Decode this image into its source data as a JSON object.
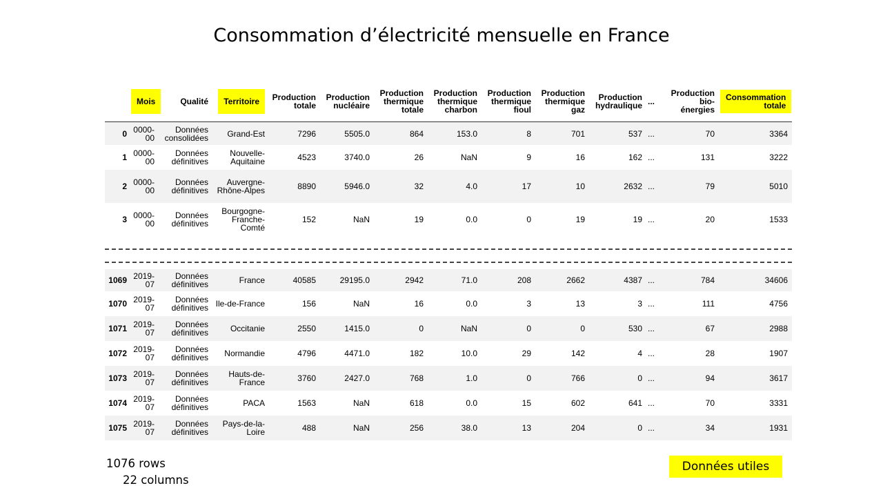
{
  "title": "Consommation d’électricité mensuelle en France",
  "table": {
    "columns": [
      {
        "label": "",
        "highlight": false
      },
      {
        "label": "Mois",
        "highlight": true
      },
      {
        "label": "Qualité",
        "highlight": false
      },
      {
        "label": "Territoire",
        "highlight": true
      },
      {
        "label": "Production totale",
        "highlight": false
      },
      {
        "label": "Production nucléaire",
        "highlight": false
      },
      {
        "label": "Production thermique totale",
        "highlight": false
      },
      {
        "label": "Production thermique charbon",
        "highlight": false
      },
      {
        "label": "Production thermique fioul",
        "highlight": false
      },
      {
        "label": "Production thermique gaz",
        "highlight": false
      },
      {
        "label": "Production hydraulique",
        "highlight": false
      },
      {
        "label": "...",
        "highlight": false
      },
      {
        "label": "Production bio-énergies",
        "highlight": false
      },
      {
        "label": "Consommation totale",
        "highlight": true
      }
    ],
    "top_rows": [
      [
        "0",
        "0000-00",
        "Données consolidées",
        "Grand-Est",
        "7296",
        "5505.0",
        "864",
        "153.0",
        "8",
        "701",
        "537",
        "...",
        "70",
        "3364"
      ],
      [
        "1",
        "0000-00",
        "Données définitives",
        "Nouvelle-Aquitaine",
        "4523",
        "3740.0",
        "26",
        "NaN",
        "9",
        "16",
        "162",
        "...",
        "131",
        "3222"
      ],
      [
        "2",
        "0000-00",
        "Données définitives",
        "Auvergne-Rhône-Alpes",
        "8890",
        "5946.0",
        "32",
        "4.0",
        "17",
        "10",
        "2632",
        "...",
        "79",
        "5010"
      ],
      [
        "3",
        "0000-00",
        "Données définitives",
        "Bourgogne-Franche-Comté",
        "152",
        "NaN",
        "19",
        "0.0",
        "0",
        "19",
        "19",
        "...",
        "20",
        "1533"
      ]
    ],
    "bottom_rows": [
      [
        "1069",
        "2019-07",
        "Données définitives",
        "France",
        "40585",
        "29195.0",
        "2942",
        "71.0",
        "208",
        "2662",
        "4387",
        "...",
        "784",
        "34606"
      ],
      [
        "1070",
        "2019-07",
        "Données définitives",
        "Ile-de-France",
        "156",
        "NaN",
        "16",
        "0.0",
        "3",
        "13",
        "3",
        "...",
        "111",
        "4756"
      ],
      [
        "1071",
        "2019-07",
        "Données définitives",
        "Occitanie",
        "2550",
        "1415.0",
        "0",
        "NaN",
        "0",
        "0",
        "530",
        "...",
        "67",
        "2988"
      ],
      [
        "1072",
        "2019-07",
        "Données définitives",
        "Normandie",
        "4796",
        "4471.0",
        "182",
        "10.0",
        "29",
        "142",
        "4",
        "...",
        "28",
        "1907"
      ],
      [
        "1073",
        "2019-07",
        "Données définitives",
        "Hauts-de-France",
        "3760",
        "2427.0",
        "768",
        "1.0",
        "0",
        "766",
        "0",
        "...",
        "94",
        "3617"
      ],
      [
        "1074",
        "2019-07",
        "Données définitives",
        "PACA",
        "1563",
        "NaN",
        "618",
        "0.0",
        "15",
        "602",
        "641",
        "...",
        "70",
        "3331"
      ],
      [
        "1075",
        "2019-07",
        "Données définitives",
        "Pays-de-la-Loire",
        "488",
        "NaN",
        "256",
        "38.0",
        "13",
        "204",
        "0",
        "...",
        "34",
        "1931"
      ]
    ]
  },
  "summary": {
    "rows": "1076 rows",
    "columns": "22 columns"
  },
  "badge": "Données utiles",
  "colors": {
    "highlight": "#ffff00",
    "stripe": "#f2f2f2"
  }
}
